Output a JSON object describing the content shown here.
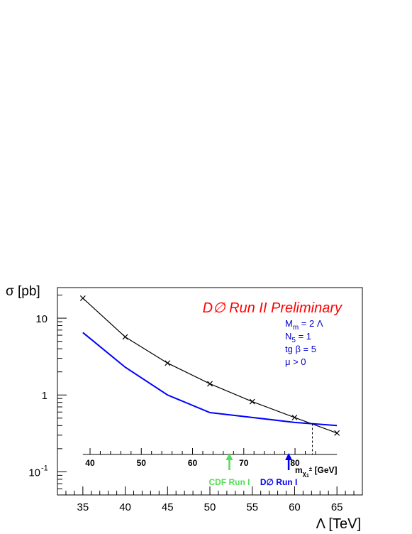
{
  "chart_data": {
    "type": "line",
    "title": "D∅ Run II Preliminary",
    "ylabel": "σ [pb]",
    "xlabel": "Λ [TeV]",
    "x": [
      35,
      40,
      45,
      50,
      55,
      60,
      65
    ],
    "xlim": [
      32,
      68
    ],
    "ylim": [
      0.05,
      25
    ],
    "ylog": true,
    "xticks": [
      "35",
      "40",
      "45",
      "50",
      "55",
      "60",
      "65"
    ],
    "yticks": [
      {
        "value": 10,
        "label": "10"
      },
      {
        "value": 1,
        "label": "1"
      },
      {
        "value": 0.1,
        "label": "10",
        "exp": "-1"
      }
    ],
    "series": [
      {
        "color": "#000000",
        "markers": true,
        "points": [
          [
            35,
            18.2
          ],
          [
            40,
            5.7
          ],
          [
            45,
            2.6
          ],
          [
            50,
            1.4
          ],
          [
            55,
            0.82
          ],
          [
            60,
            0.51
          ],
          [
            65,
            0.32
          ]
        ]
      },
      {
        "color": "#0000ff",
        "markers": false,
        "points": [
          [
            35,
            6.5
          ],
          [
            40,
            2.3
          ],
          [
            45,
            1.0
          ],
          [
            50,
            0.59
          ],
          [
            55,
            0.51
          ],
          [
            60,
            0.44
          ],
          [
            65,
            0.4
          ]
        ]
      }
    ],
    "params": {
      "line1": "M",
      "line1_sub": "m",
      "line1_rest": " = 2 Λ",
      "line2": "N",
      "line2_sub": "5",
      "line2_rest": " = 1",
      "line3": "tg β = 5",
      "line4": "μ > 0",
      "color": "#0000cc"
    },
    "secondary_axis": {
      "label_m": "m",
      "label_sub": "χ",
      "label_subsub": "1",
      "label_sup": "±",
      "label_unit": "[GeV]",
      "ticks": [
        {
          "value": 40,
          "lambda": 35.85
        },
        {
          "value": 50,
          "lambda": 41.9
        },
        {
          "value": 60,
          "lambda": 47.95
        },
        {
          "value": 70,
          "lambda": 54.0
        },
        {
          "value": 80,
          "lambda": 60.05
        }
      ],
      "range_lambda": [
        35,
        65
      ],
      "cross_lambda": 62.1
    },
    "markers_arrows": [
      {
        "label": "CDF Run I",
        "color": "#55dd55",
        "lambda": 52.3
      },
      {
        "label": "D∅ Run I",
        "color": "#0000ee",
        "lambda": 59.3
      }
    ],
    "title_color": "#ff0000"
  }
}
